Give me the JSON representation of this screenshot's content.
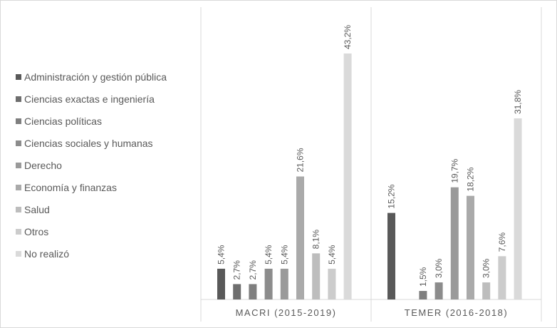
{
  "chart_data": {
    "type": "bar",
    "title": "",
    "xlabel": "",
    "ylabel": "",
    "ylim": [
      0,
      50
    ],
    "grid": false,
    "legend_position": "left",
    "groups": [
      "MACRI (2015-2019)",
      "TEMER (2016-2018)"
    ],
    "series": [
      {
        "name": "Administración y gestión pública",
        "color": "#595959",
        "values": [
          5.4,
          15.2
        ],
        "labels": [
          "5,4%",
          "15,2%"
        ]
      },
      {
        "name": "Ciencias exactas e ingeniería",
        "color": "#6e6e6e",
        "values": [
          2.7,
          null
        ],
        "labels": [
          "2,7%",
          ""
        ]
      },
      {
        "name": "Ciencias políticas",
        "color": "#7f7f7f",
        "values": [
          2.7,
          1.5
        ],
        "labels": [
          "2,7%",
          "1,5%"
        ]
      },
      {
        "name": "Ciencias sociales y humanas",
        "color": "#8c8c8c",
        "values": [
          5.4,
          3.0
        ],
        "labels": [
          "5,4%",
          "3,0%"
        ]
      },
      {
        "name": "Derecho",
        "color": "#9a9a9a",
        "values": [
          5.4,
          19.7
        ],
        "labels": [
          "5,4%",
          "19,7%"
        ]
      },
      {
        "name": "Economía y finanzas",
        "color": "#aaaaaa",
        "values": [
          21.6,
          18.2
        ],
        "labels": [
          "21,6%",
          "18,2%"
        ]
      },
      {
        "name": "Salud",
        "color": "#bdbdbd",
        "values": [
          8.1,
          3.0
        ],
        "labels": [
          "8,1%",
          "3,0%"
        ]
      },
      {
        "name": "Otros",
        "color": "#cccccc",
        "values": [
          5.4,
          7.6
        ],
        "labels": [
          "5,4%",
          "7,6%"
        ]
      },
      {
        "name": "No realizó",
        "color": "#dadada",
        "values": [
          43.2,
          31.8
        ],
        "labels": [
          "43,2%",
          "31,8%"
        ]
      }
    ]
  }
}
